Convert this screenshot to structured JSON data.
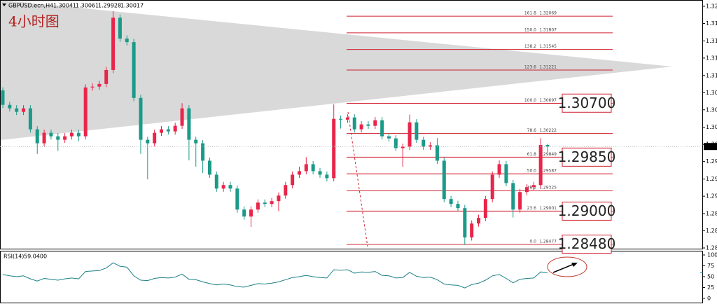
{
  "chart_data": {
    "type": "candlestick",
    "symbol": "GBPUSD.ecn,H4",
    "title": "4小时图",
    "open": [
      1.309,
      1.30673,
      1.30618,
      1.30563,
      1.30618,
      1.30288,
      1.30068,
      1.30233,
      1.30178,
      1.30123,
      1.30178,
      1.30233,
      1.30178,
      1.30947,
      1.3096,
      1.31002,
      1.31222,
      1.32045,
      1.31716,
      1.31661,
      1.30782,
      1.30123,
      1.30068,
      1.30233,
      1.30288,
      1.30255,
      1.30343,
      1.30618,
      1.30123,
      1.30068,
      1.29794,
      1.29574,
      1.29355,
      1.2941,
      1.29355,
      1.29025,
      1.28915,
      1.29025,
      1.29135,
      1.29113,
      1.29157,
      1.29245,
      1.2941,
      1.29574,
      1.29629,
      1.29739,
      1.29629,
      1.29574,
      1.29519,
      1.30453,
      1.3044,
      1.30475,
      1.30288,
      1.30365,
      1.30343,
      1.30431,
      1.30178,
      1.30145,
      1.29992,
      1.30014,
      1.30398,
      1.30123,
      1.30014,
      1.30036,
      1.29794,
      1.2919,
      1.29113,
      1.29047,
      1.28586,
      1.28805,
      1.28893,
      1.2919,
      1.29574,
      1.29739,
      1.29442,
      1.29025,
      1.293,
      1.29377,
      1.2941,
      1.30041
    ],
    "high": [
      1.3095,
      1.30723,
      1.30668,
      1.30668,
      1.30668,
      1.30338,
      1.30283,
      1.30283,
      1.30228,
      1.30228,
      1.30283,
      1.30283,
      1.30997,
      1.3101,
      1.31052,
      1.31272,
      1.3215,
      1.32095,
      1.31766,
      1.31711,
      1.30832,
      1.30173,
      1.30283,
      1.30338,
      1.30338,
      1.30393,
      1.307,
      1.30668,
      1.30173,
      1.30118,
      1.29844,
      1.29624,
      1.2946,
      1.2946,
      1.29405,
      1.29075,
      1.29075,
      1.29185,
      1.29185,
      1.29207,
      1.29295,
      1.2946,
      1.29624,
      1.297,
      1.2985,
      1.29789,
      1.29679,
      1.29624,
      1.3068,
      1.30503,
      1.30525,
      1.30525,
      1.30415,
      1.30415,
      1.30481,
      1.30481,
      1.30228,
      1.30195,
      1.30064,
      1.3052,
      1.30448,
      1.30173,
      1.30086,
      1.3015,
      1.29844,
      1.2924,
      1.29163,
      1.29097,
      1.28855,
      1.28943,
      1.2924,
      1.29624,
      1.298,
      1.29789,
      1.29492,
      1.2935,
      1.29427,
      1.2946,
      1.3015,
      1.30061
    ],
    "low": [
      1.30623,
      1.30568,
      1.30513,
      1.30513,
      1.30238,
      1.299,
      1.30018,
      1.30128,
      1.2995,
      1.30073,
      1.30128,
      1.301,
      1.30128,
      1.30897,
      1.3091,
      1.30952,
      1.31172,
      1.31666,
      1.31611,
      1.30732,
      1.299,
      1.295,
      1.30018,
      1.30183,
      1.30205,
      1.30205,
      1.30293,
      1.298,
      1.297,
      1.296,
      1.29524,
      1.29305,
      1.29305,
      1.29305,
      1.28975,
      1.28865,
      1.2875,
      1.28975,
      1.29063,
      1.29063,
      1.29,
      1.29195,
      1.2936,
      1.29524,
      1.29579,
      1.29579,
      1.29524,
      1.29469,
      1.29469,
      1.303,
      1.3039,
      1.30238,
      1.30238,
      1.30293,
      1.30293,
      1.30128,
      1.30095,
      1.29942,
      1.297,
      1.29964,
      1.30073,
      1.29964,
      1.29964,
      1.29744,
      1.2914,
      1.29063,
      1.28997,
      1.2847,
      1.28536,
      1.28755,
      1.28843,
      1.2914,
      1.29524,
      1.29392,
      1.289,
      1.28975,
      1.2925,
      1.29327,
      1.2936,
      1.29928
    ],
    "close": [
      1.30673,
      1.30618,
      1.30563,
      1.30618,
      1.30288,
      1.30068,
      1.30233,
      1.30178,
      1.30123,
      1.30178,
      1.30233,
      1.30178,
      1.30947,
      1.3096,
      1.31002,
      1.31222,
      1.32045,
      1.31716,
      1.31661,
      1.30782,
      1.30123,
      1.30068,
      1.30233,
      1.30288,
      1.30255,
      1.30343,
      1.30618,
      1.30123,
      1.30068,
      1.29794,
      1.29574,
      1.29355,
      1.2941,
      1.29355,
      1.29025,
      1.28915,
      1.29025,
      1.29135,
      1.29113,
      1.29157,
      1.29245,
      1.2941,
      1.29574,
      1.29629,
      1.29739,
      1.29629,
      1.29574,
      1.29519,
      1.30453,
      1.3044,
      1.30475,
      1.30288,
      1.30365,
      1.30343,
      1.30431,
      1.30178,
      1.30145,
      1.29992,
      1.30014,
      1.30398,
      1.30123,
      1.30014,
      1.30036,
      1.29794,
      1.2919,
      1.29113,
      1.29047,
      1.28586,
      1.28805,
      1.28893,
      1.2919,
      1.29574,
      1.29739,
      1.29442,
      1.29025,
      1.293,
      1.29377,
      1.2941,
      1.30041,
      1.30017
    ],
    "up_color": "#e8264a",
    "down_color": "#1a9a88",
    "ylim": [
      1.28398,
      1.32324
    ],
    "yticks": [
      1.32225,
      1.31955,
      {
        "value": 1.3168,
        "label": "1.31680"
      },
      {
        "value": 1.3141,
        "label": "1.31410"
      },
      1.31135,
      1.30865,
      1.30595,
      {
        "value": 1.3032,
        "label": "1.30320"
      },
      {
        "value": 1.3005,
        "label": "1.30050"
      },
      {
        "value": 1.2978,
        "label": "1.29780"
      },
      1.29505,
      1.29235,
      {
        "value": 1.2896,
        "label": "1.28960"
      },
      {
        "value": 1.2869,
        "label": "1.28690"
      },
      {
        "value": 1.2842,
        "label": "1.28420"
      }
    ],
    "fib_levels": [
      {
        "level": "161.8",
        "price": 1.32069
      },
      {
        "level": "150.0",
        "price": 1.31807
      },
      {
        "level": "138.2",
        "price": 1.31545
      },
      {
        "level": "123.6",
        "price": 1.31221
      },
      {
        "level": "100.0",
        "price": 1.30697
      },
      {
        "level": "78.6",
        "price": 1.30222
      },
      {
        "level": "61.8",
        "price": 1.29849
      },
      {
        "level": "50.0",
        "price": 1.29587
      },
      {
        "level": "38.2",
        "price": 1.29325
      },
      {
        "level": "23.6",
        "price": 1.29001
      },
      {
        "level": "0.0",
        "price": 1.28477
      }
    ],
    "fib_color": "#d0202e",
    "annotations": [
      {
        "value": 1.307,
        "label": "1.30700"
      },
      {
        "value": 1.2985,
        "label": "1.29850"
      },
      {
        "value": 1.29,
        "label": "1.29000"
      },
      {
        "value": 1.2848,
        "label": "1.28480"
      }
    ],
    "rsi": {
      "name": "RSI(14)",
      "color": "#1a7f86",
      "ylim": [
        0,
        100
      ],
      "yticks": [
        0,
        25,
        50,
        75,
        100
      ],
      "current": {
        "value": 59.04,
        "label": "59.0400"
      },
      "values": [
        55,
        52,
        50,
        52,
        45,
        40,
        46,
        44,
        42,
        45,
        47,
        45,
        62,
        63,
        64,
        70,
        82,
        74,
        72,
        52,
        42,
        41,
        46,
        48,
        47,
        49,
        56,
        44,
        43,
        38,
        34,
        31,
        33,
        31,
        27,
        26,
        30,
        34,
        33,
        35,
        38,
        43,
        48,
        50,
        53,
        50,
        48,
        47,
        66,
        65,
        66,
        58,
        61,
        60,
        62,
        53,
        52,
        47,
        48,
        60,
        51,
        48,
        49,
        43,
        33,
        31,
        30,
        24,
        32,
        35,
        42,
        52,
        55,
        46,
        36,
        44,
        46,
        47,
        61,
        59.04
      ]
    }
  }
}
